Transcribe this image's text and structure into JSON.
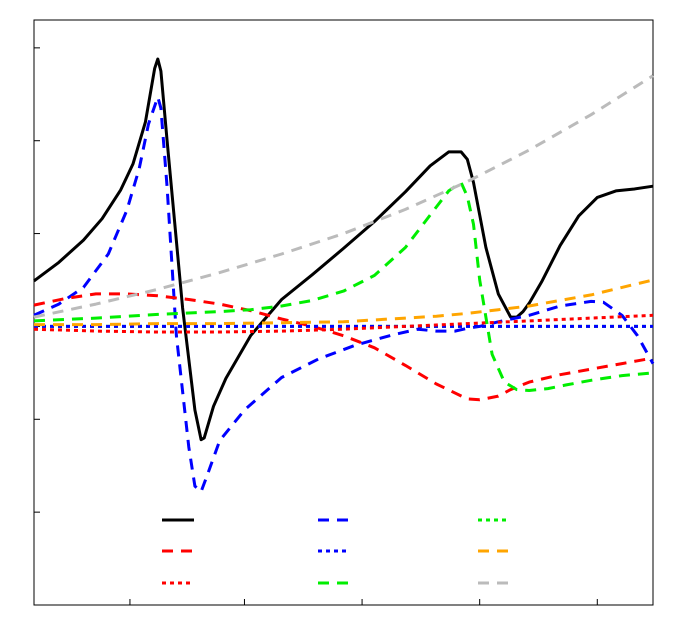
{
  "chart_data": {
    "type": "line",
    "title": "",
    "xlabel": "",
    "ylabel": "",
    "xlim": [
      0,
      1
    ],
    "ylim": [
      -3,
      3.3
    ],
    "grid": false,
    "legend_location": "lower-center",
    "series": [
      {
        "color": "#000000",
        "dash": "solid",
        "x": [
          0.0,
          0.04,
          0.08,
          0.11,
          0.14,
          0.16,
          0.18,
          0.195,
          0.2,
          0.205,
          0.215,
          0.24,
          0.26,
          0.27,
          0.275,
          0.29,
          0.31,
          0.35,
          0.4,
          0.45,
          0.5,
          0.55,
          0.6,
          0.64,
          0.67,
          0.69,
          0.7,
          0.71,
          0.72,
          0.73,
          0.75,
          0.77,
          0.78,
          0.79,
          0.8,
          0.82,
          0.85,
          0.88,
          0.91,
          0.94,
          0.97,
          1.0
        ],
        "y": [
          0.49,
          0.69,
          0.93,
          1.16,
          1.47,
          1.75,
          2.2,
          2.78,
          2.88,
          2.75,
          2.0,
          0.2,
          -0.9,
          -1.22,
          -1.2,
          -0.86,
          -0.56,
          -0.1,
          0.29,
          0.56,
          0.84,
          1.13,
          1.45,
          1.73,
          1.88,
          1.88,
          1.8,
          1.55,
          1.2,
          0.85,
          0.35,
          0.1,
          0.1,
          0.16,
          0.25,
          0.48,
          0.87,
          1.19,
          1.39,
          1.46,
          1.48,
          1.51
        ]
      },
      {
        "color": "#0000ff",
        "dash": "long",
        "x": [
          0.0,
          0.04,
          0.08,
          0.12,
          0.15,
          0.17,
          0.185,
          0.2,
          0.205,
          0.215,
          0.23,
          0.25,
          0.26,
          0.27,
          0.28,
          0.3,
          0.34,
          0.4,
          0.46,
          0.52,
          0.58,
          0.62,
          0.65,
          0.68,
          0.7,
          0.72,
          0.75,
          0.8,
          0.85,
          0.9,
          0.92,
          0.95,
          0.975,
          1.0
        ],
        "y": [
          0.12,
          0.24,
          0.42,
          0.78,
          1.25,
          1.7,
          2.18,
          2.47,
          2.35,
          1.5,
          -0.1,
          -1.3,
          -1.72,
          -1.78,
          -1.6,
          -1.23,
          -0.9,
          -0.55,
          -0.35,
          -0.2,
          -0.09,
          -0.03,
          -0.05,
          -0.05,
          -0.02,
          0.0,
          0.05,
          0.12,
          0.22,
          0.27,
          0.26,
          0.12,
          -0.1,
          -0.4
        ]
      },
      {
        "color": "#00ee00",
        "dash": "dot",
        "x": [
          0.0,
          0.25,
          0.5,
          0.75,
          1.0
        ],
        "y": [
          0.0,
          0.0,
          0.0,
          0.0,
          0.0
        ]
      },
      {
        "color": "#ff0000",
        "dash": "long",
        "x": [
          0.0,
          0.05,
          0.1,
          0.15,
          0.2,
          0.25,
          0.3,
          0.35,
          0.4,
          0.45,
          0.5,
          0.55,
          0.6,
          0.65,
          0.7,
          0.72,
          0.75,
          0.77,
          0.8,
          0.85,
          0.9,
          0.95,
          1.0
        ],
        "y": [
          0.23,
          0.3,
          0.35,
          0.35,
          0.33,
          0.29,
          0.24,
          0.17,
          0.08,
          0.0,
          -0.1,
          -0.23,
          -0.42,
          -0.62,
          -0.78,
          -0.79,
          -0.75,
          -0.68,
          -0.6,
          -0.52,
          -0.46,
          -0.4,
          -0.34
        ]
      },
      {
        "color": "#0000ff",
        "dash": "dot",
        "x": [
          0.0,
          0.25,
          0.5,
          0.75,
          1.0
        ],
        "y": [
          0.0,
          0.0,
          0.0,
          0.0,
          0.0
        ]
      },
      {
        "color": "#ffa500",
        "dash": "long",
        "x": [
          0.0,
          0.1,
          0.2,
          0.3,
          0.4,
          0.5,
          0.55,
          0.6,
          0.65,
          0.7,
          0.75,
          0.8,
          0.85,
          0.9,
          0.95,
          1.0
        ],
        "y": [
          0.02,
          0.02,
          0.03,
          0.03,
          0.04,
          0.05,
          0.07,
          0.09,
          0.11,
          0.14,
          0.18,
          0.22,
          0.28,
          0.34,
          0.42,
          0.5
        ]
      },
      {
        "color": "#ff0000",
        "dash": "dot",
        "x": [
          0.0,
          0.1,
          0.2,
          0.3,
          0.4,
          0.5,
          0.6,
          0.7,
          0.8,
          0.9,
          1.0
        ],
        "y": [
          -0.03,
          -0.05,
          -0.06,
          -0.06,
          -0.05,
          -0.03,
          0.0,
          0.03,
          0.06,
          0.09,
          0.12
        ]
      },
      {
        "color": "#00ee00",
        "dash": "long",
        "x": [
          0.0,
          0.1,
          0.2,
          0.3,
          0.35,
          0.4,
          0.45,
          0.5,
          0.55,
          0.6,
          0.64,
          0.67,
          0.69,
          0.7,
          0.71,
          0.72,
          0.74,
          0.76,
          0.78,
          0.8,
          0.83,
          0.86,
          0.9,
          0.95,
          1.0
        ],
        "y": [
          0.06,
          0.09,
          0.13,
          0.16,
          0.18,
          0.22,
          0.28,
          0.38,
          0.55,
          0.85,
          1.2,
          1.46,
          1.55,
          1.4,
          1.1,
          0.5,
          -0.3,
          -0.6,
          -0.68,
          -0.69,
          -0.67,
          -0.63,
          -0.58,
          -0.53,
          -0.5
        ]
      },
      {
        "color": "#bbbbbb",
        "dash": "long",
        "x": [
          0.0,
          0.1,
          0.2,
          0.3,
          0.4,
          0.5,
          0.6,
          0.7,
          0.8,
          0.9,
          1.0
        ],
        "y": [
          0.1,
          0.24,
          0.4,
          0.58,
          0.78,
          1.0,
          1.26,
          1.56,
          1.9,
          2.28,
          2.7
        ]
      }
    ],
    "legend_layout": [
      [
        0,
        1,
        2
      ],
      [
        3,
        4,
        5
      ],
      [
        6,
        7,
        8
      ]
    ]
  }
}
